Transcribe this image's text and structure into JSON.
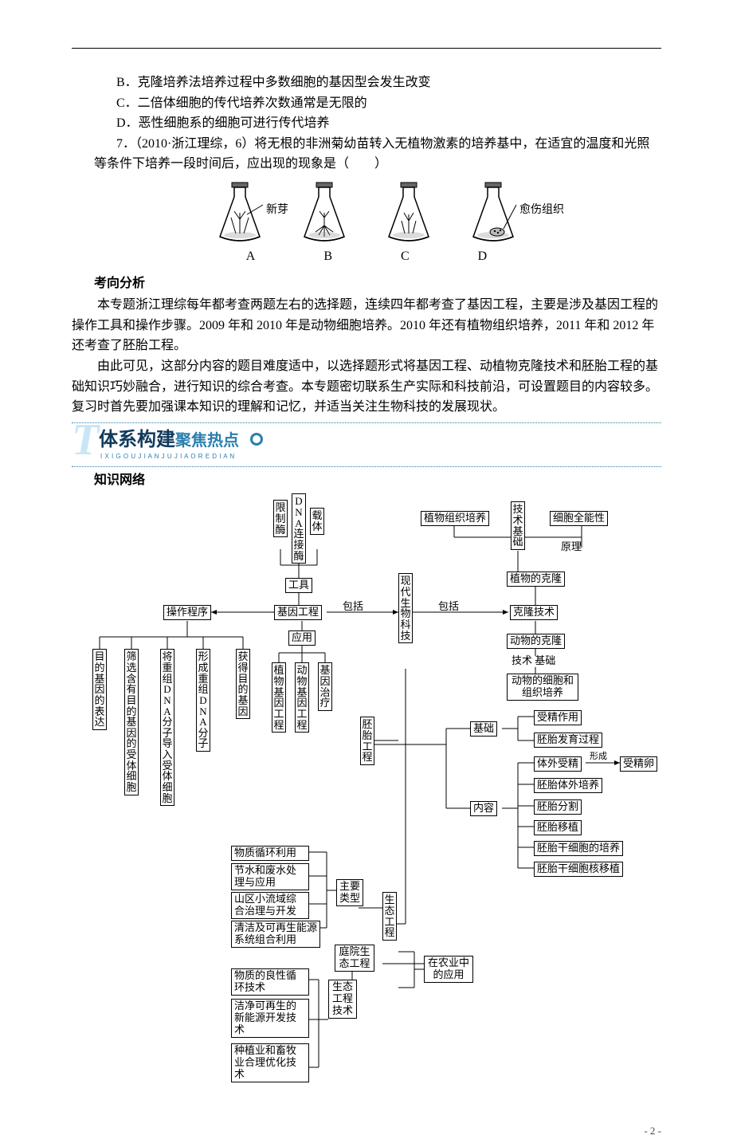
{
  "options": {
    "B": "B．克隆培养法培养过程中多数细胞的基因型会发生改变",
    "C": "C．二倍体细胞的传代培养次数通常是无限的",
    "D": "D．恶性细胞系的细胞可进行传代培养"
  },
  "q7_lead": "7．（2010·浙江理综，6）将无根的非洲菊幼苗转入无植物激素的培养基中，在适宜的温度和光照等条件下培养一段时间后，应出现的现象是（　　）",
  "flasks": {
    "labelA": "新芽",
    "labelD": "愈伤组织",
    "letters": [
      "A",
      "B",
      "C",
      "D"
    ]
  },
  "headings": {
    "direction": "考向分析",
    "net": "知识网络"
  },
  "para1": "本专题浙江理综每年都考查两题左右的选择题，连续四年都考查了基因工程，主要是涉及基因工程的操作工具和操作步骤。2009 年和 2010 年是动物细胞培养。2010 年还有植物组织培养，2011 年和 2012 年还考查了胚胎工程。",
  "para2": "由此可见，这部分内容的题目难度适中，以选择题形式将基因工程、动植物克隆技术和胚胎工程的基础知识巧妙融合，进行知识的综合考查。本专题密切联系生产实际和科技前沿，可设置题目的内容较多。复习时首先要加强课本知识的理解和记忆，并适当关注生物科技的发展现状。",
  "banner": {
    "t1": "体系构建",
    "t2": "聚焦热点",
    "pinyin": "I X I G O U J I A N J U J I A O R E D I A N"
  },
  "diagram": {
    "center_v": "现代生物科技",
    "gongju": "工具",
    "xianzhimei": "限制酶",
    "lianjiemei": "DNA连接酶",
    "zaiti": "载体",
    "jiyingongcheng": "基因工程",
    "baokuo": "包括",
    "caozuochengxu": "操作程序",
    "yingyong": "应用",
    "mudi_biaoda": "目的基因的表达",
    "shaixuan": "筛选含有目的基因的受体细胞",
    "daoru": "将重组DNA分子导入受体细胞",
    "xingcheng": "形成重组DNA分子",
    "huode": "获得目的基因",
    "zhiwu_jiyin": "植物基因工程",
    "dongwu_jiyin": "动物基因工程",
    "jiyinzhiliao": "基因治疗",
    "zhiwuzuzhi": "植物组织培养",
    "jishujichu": "技术基础",
    "xibaoquannengxing": "细胞全能性",
    "yuanli": "原理",
    "zhiwudekelong": "植物的克隆",
    "kelongjishu": "克隆技术",
    "dongwudekelong": "动物的克隆",
    "jishu_jichu_txt": "技术  基础",
    "dongwuxibao": "动物的细胞和组织培养",
    "peitai": "胚胎工程",
    "jichu": "基础",
    "neirong": "内容",
    "shoujing": "受精作用",
    "peitaifayu": "胚胎发育过程",
    "tiwaishoujing": "体外受精",
    "xingcheng_txt": "形成",
    "shoujingluan": "受精卵",
    "peitaitiwai": "胚胎体外培养",
    "peitaifenge": "胚胎分割",
    "peitaiyizhi": "胚胎移植",
    "peitaigan1": "胚胎干细胞的培养",
    "peitaigan2": "胚胎干细胞核移植",
    "shengtaigongcheng": "生态工程",
    "zhuyaoleixing": "主要类型",
    "zainongye": "在农业中的应用",
    "wuzhixunhuan": "物质循环利用",
    "jieshuifeishui": "节水和废水处理与应用",
    "shanqu": "山区小流域综合治理与开发",
    "qingjie": "清洁及可再生能源系统组合利用",
    "tingyuan": "庭院生态工程",
    "shengtaigongchengjishu": "生态工程技术",
    "wuzhiliang": "物质的良性循环技术",
    "jiejingnengyuan": "洁净可再生的新能源开发技术",
    "zhongzhiye": "种植业和畜牧业合理优化技术"
  },
  "page_num": "- 2 -"
}
